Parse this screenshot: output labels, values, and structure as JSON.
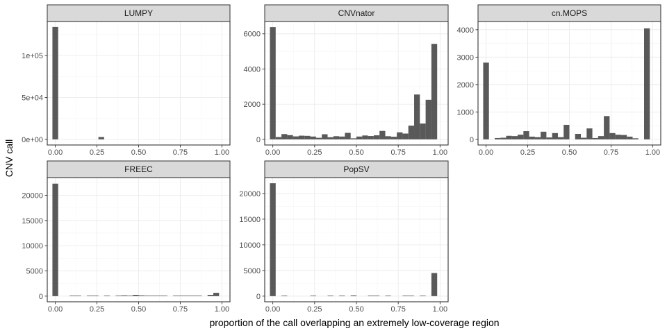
{
  "chart_data": {
    "type": "bar",
    "xlabel": "proportion of the call overlapping an extremely low-coverage region",
    "ylabel": "CNV call",
    "bar_color": "#595959",
    "strip_color": "#d9d9d9",
    "x_ticks": [
      "0.00",
      "0.25",
      "0.50",
      "0.75",
      "1.00"
    ],
    "x_tick_values": [
      0,
      0.25,
      0.5,
      0.75,
      1
    ],
    "xlim": [
      -0.0483,
      1.0483
    ],
    "bin_width": 0.0345,
    "bin_centers": [
      0,
      0.0345,
      0.069,
      0.1034,
      0.1379,
      0.1724,
      0.2069,
      0.2414,
      0.2759,
      0.3103,
      0.3448,
      0.3793,
      0.4138,
      0.4483,
      0.4828,
      0.5172,
      0.5517,
      0.5862,
      0.6207,
      0.6552,
      0.6897,
      0.7241,
      0.7586,
      0.7931,
      0.8276,
      0.8621,
      0.8966,
      0.931,
      0.9655,
      1
    ],
    "facets": [
      {
        "name": "LUMPY",
        "ylim": [
          -6700,
          140500
        ],
        "y_ticks": [
          "0e+00",
          "5e+04",
          "1e+05"
        ],
        "y_tick_values": [
          0,
          50000,
          100000
        ],
        "values": [
          134000,
          0,
          0,
          0,
          0,
          0,
          0,
          0,
          2800,
          0,
          0,
          0,
          0,
          0,
          0,
          0,
          0,
          0,
          0,
          0,
          0,
          0,
          0,
          0,
          0,
          0,
          0,
          0,
          0,
          0
        ]
      },
      {
        "name": "CNVnator",
        "ylim": [
          -320,
          6700
        ],
        "y_ticks": [
          "0",
          "2000",
          "4000",
          "6000"
        ],
        "y_tick_values": [
          0,
          2000,
          4000,
          6000
        ],
        "values": [
          6380,
          130,
          300,
          240,
          170,
          210,
          200,
          160,
          90,
          290,
          120,
          180,
          160,
          370,
          60,
          160,
          220,
          190,
          230,
          480,
          180,
          150,
          400,
          330,
          780,
          2550,
          900,
          2250,
          5430,
          0
        ]
      },
      {
        "name": "cn.MOPS",
        "ylim": [
          -205,
          4300
        ],
        "y_ticks": [
          "0",
          "1000",
          "2000",
          "3000",
          "4000"
        ],
        "y_tick_values": [
          0,
          1000,
          2000,
          3000,
          4000
        ],
        "values": [
          2800,
          0,
          50,
          60,
          130,
          120,
          170,
          300,
          100,
          80,
          280,
          70,
          230,
          80,
          530,
          0,
          200,
          60,
          400,
          50,
          120,
          850,
          230,
          170,
          160,
          100,
          40,
          0,
          4050,
          0
        ]
      },
      {
        "name": "FREEC",
        "ylim": [
          -1120,
          23500
        ],
        "y_ticks": [
          "0",
          "5000",
          "10000",
          "15000",
          "20000"
        ],
        "y_tick_values": [
          0,
          5000,
          10000,
          15000,
          20000
        ],
        "values": [
          22300,
          0,
          0,
          50,
          50,
          0,
          50,
          50,
          0,
          50,
          0,
          50,
          150,
          50,
          250,
          150,
          50,
          50,
          50,
          50,
          0,
          50,
          50,
          50,
          50,
          50,
          0,
          250,
          650,
          0
        ]
      },
      {
        "name": "PopSV",
        "ylim": [
          -1100,
          23100
        ],
        "y_ticks": [
          "0",
          "5000",
          "10000",
          "15000",
          "20000"
        ],
        "y_tick_values": [
          0,
          5000,
          10000,
          15000,
          20000
        ],
        "values": [
          22000,
          0,
          50,
          0,
          0,
          0,
          0,
          50,
          0,
          0,
          50,
          0,
          50,
          0,
          150,
          0,
          0,
          50,
          50,
          0,
          50,
          0,
          0,
          50,
          50,
          0,
          50,
          0,
          4500,
          0
        ]
      }
    ]
  }
}
